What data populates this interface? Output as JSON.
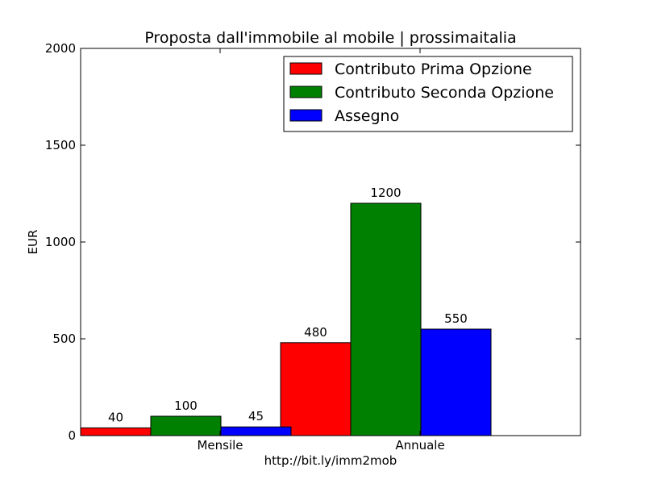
{
  "chart_data": {
    "type": "bar",
    "title": "Proposta dall'immobile al mobile | prossimaitalia",
    "xlabel": "http://bit.ly/imm2mob",
    "ylabel": "EUR",
    "ylim": [
      0,
      2000
    ],
    "yticks": [
      "0",
      "500",
      "1000",
      "1500",
      "2000"
    ],
    "ytick_values": [
      0,
      500,
      1000,
      1500,
      2000
    ],
    "categories": [
      "Mensile",
      "Annuale"
    ],
    "series": [
      {
        "name": "Contributo Prima Opzione",
        "color": "#ff0000",
        "values": [
          40,
          480
        ],
        "labels": [
          "40",
          "480"
        ]
      },
      {
        "name": "Contributo Seconda Opzione",
        "color": "#008000",
        "values": [
          100,
          1200
        ],
        "labels": [
          "100",
          "1200"
        ]
      },
      {
        "name": "Assegno",
        "color": "#0000ff",
        "values": [
          45,
          550
        ],
        "labels": [
          "45",
          "550"
        ]
      }
    ],
    "legend": "top-right",
    "grid": false
  }
}
